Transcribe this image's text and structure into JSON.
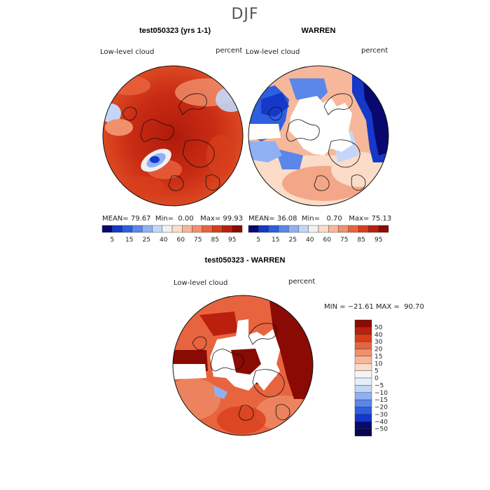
{
  "super_title": "DJF",
  "chart_data": [
    {
      "type": "heatmap",
      "title": "test050323 (yrs 1-1)",
      "variable_label": "Low-level cloud",
      "units_label": "percent",
      "projection": "north polar stereographic",
      "stats": {
        "mean_label": "MEAN=",
        "mean": "79.67",
        "min_label": "Min=",
        "min": "0.00",
        "max_label": "Max=",
        "max": "99.93"
      },
      "colorbar": {
        "tick_labels": [
          "5",
          "15",
          "25",
          "40",
          "60",
          "75",
          "85",
          "95"
        ],
        "colors": [
          "#08086e",
          "#1538c8",
          "#2d5fe0",
          "#5b86ea",
          "#8fb0f3",
          "#c3d6f8",
          "#f0f0f0",
          "#fadcc8",
          "#f7b79a",
          "#f0906c",
          "#e8643f",
          "#d83e1c",
          "#bb1f0e",
          "#8a0a04"
        ]
      }
    },
    {
      "type": "heatmap",
      "title": "WARREN",
      "variable_label": "Low-level cloud",
      "units_label": "percent",
      "projection": "north polar stereographic",
      "stats": {
        "mean_label": "MEAN=",
        "mean": "36.08",
        "min_label": "Min=",
        "min": "0.70",
        "max_label": "Max=",
        "max": "75.13"
      },
      "colorbar": {
        "tick_labels": [
          "5",
          "15",
          "25",
          "40",
          "60",
          "75",
          "85",
          "95"
        ],
        "colors": [
          "#08086e",
          "#1538c8",
          "#2d5fe0",
          "#5b86ea",
          "#8fb0f3",
          "#c3d6f8",
          "#f0f0f0",
          "#fadcc8",
          "#f7b79a",
          "#f0906c",
          "#e8643f",
          "#d83e1c",
          "#bb1f0e",
          "#8a0a04"
        ]
      }
    },
    {
      "type": "heatmap",
      "title": "test050323 - WARREN",
      "variable_label": "Low-level cloud",
      "units_label": "percent",
      "projection": "north polar stereographic",
      "stats_line": "MIN = −21.61 MAX =  90.70",
      "colorbar": {
        "tick_labels": [
          "50",
          "40",
          "30",
          "20",
          "15",
          "10",
          "5",
          "0",
          "−5",
          "−10",
          "−15",
          "−20",
          "−30",
          "−40",
          "−50"
        ],
        "colors": [
          "#8a0a04",
          "#bb1f0e",
          "#d83e1c",
          "#e8643f",
          "#f0906c",
          "#f7b79a",
          "#fadcc8",
          "#f5f5f5",
          "#e6eefc",
          "#c3d6f8",
          "#8fb0f3",
          "#5b86ea",
          "#2d5fe0",
          "#1538c8",
          "#08086e",
          "#060650"
        ]
      }
    }
  ]
}
